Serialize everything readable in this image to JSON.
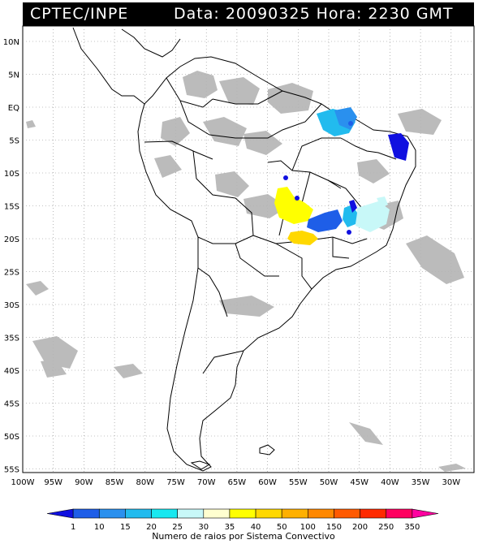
{
  "header": {
    "org": "CPTEC/INPE",
    "date_label": "Data:",
    "date_value": "20090325",
    "hour_label": "Hora:",
    "hour_value": "2230 GMT"
  },
  "lat_labels": [
    "10N",
    "5N",
    "EQ",
    "5S",
    "10S",
    "15S",
    "20S",
    "25S",
    "30S",
    "35S",
    "40S",
    "45S",
    "50S",
    "55S"
  ],
  "lon_labels": [
    "100W",
    "95W",
    "90W",
    "85W",
    "80W",
    "75W",
    "70W",
    "65W",
    "60W",
    "55W",
    "50W",
    "45W",
    "40W",
    "35W",
    "30W"
  ],
  "colorbar": {
    "title": "Numero de raios por Sistema Convectivo",
    "ticks": [
      "1",
      "10",
      "15",
      "20",
      "25",
      "30",
      "35",
      "40",
      "50",
      "100",
      "150",
      "200",
      "250",
      "350"
    ],
    "colors": [
      "#1010e0",
      "#1e5ee8",
      "#2a90ee",
      "#22bbee",
      "#18e8f0",
      "#c8f8f8",
      "#ffffd0",
      "#ffff00",
      "#ffd800",
      "#ffb000",
      "#ff8800",
      "#ff5a00",
      "#ff2a00",
      "#ff0060",
      "#ff00a0"
    ]
  },
  "colors": {
    "map_clouds": "#b4b4b4",
    "grid": "#888888",
    "borders": "#000000"
  }
}
